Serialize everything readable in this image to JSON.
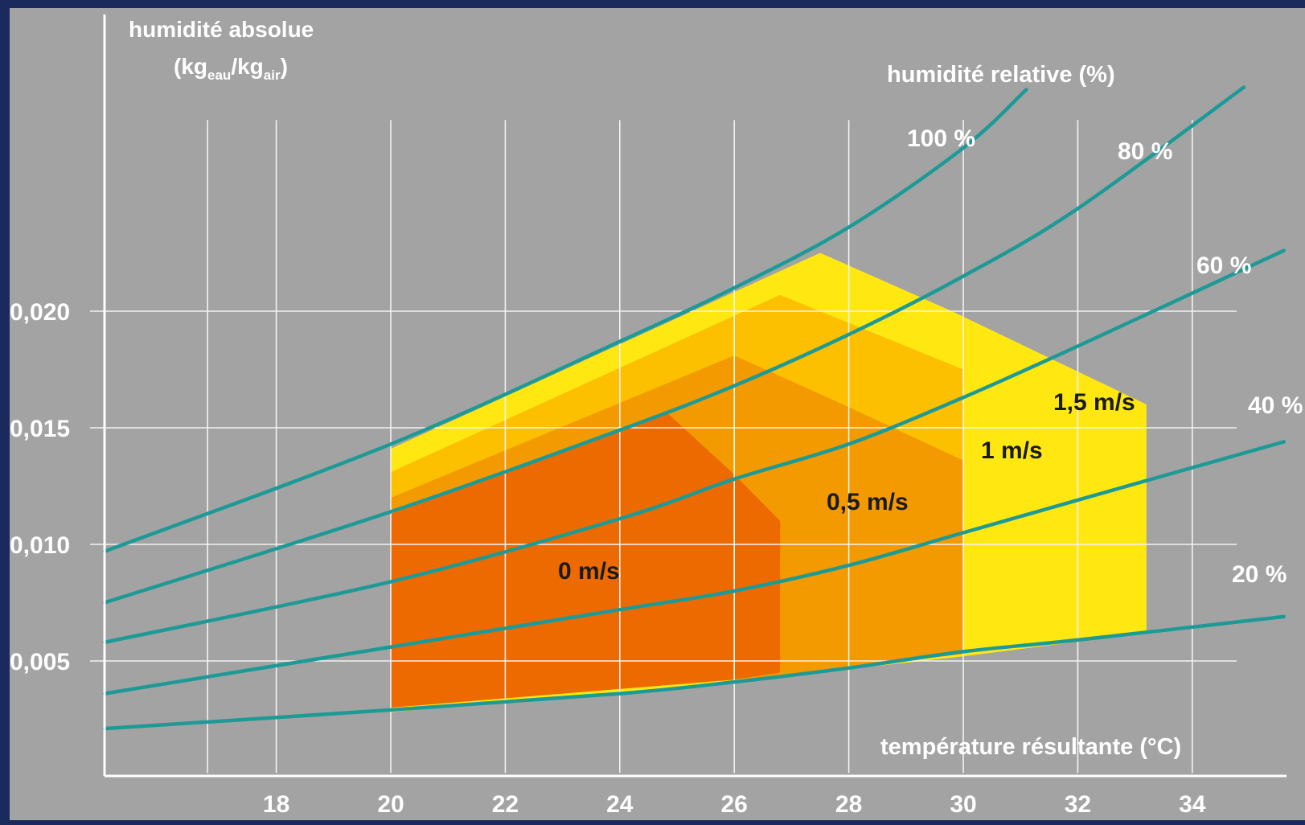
{
  "chart_data": {
    "type": "line",
    "title": "",
    "ylabel_line1": "humidité absolue",
    "ylabel_line2_kg1": "kg",
    "ylabel_line2_sub1": "eau",
    "ylabel_line2_sep": "/kg",
    "ylabel_line2_sub2": "air",
    "xlabel": "température résultante (°C)",
    "rh_title": "humidité relative (%)",
    "xlim": [
      15,
      36
    ],
    "ylim": [
      0,
      0.0305
    ],
    "x_ticks": [
      18,
      20,
      22,
      24,
      26,
      28,
      30,
      32,
      34
    ],
    "x_tick_labels": [
      "18",
      "20",
      "22",
      "24",
      "26",
      "28",
      "30",
      "32",
      "34"
    ],
    "x_grid": [
      16.8,
      18,
      20,
      22,
      24,
      26,
      28,
      30,
      32,
      34
    ],
    "y_ticks": [
      0.005,
      0.01,
      0.015,
      0.02
    ],
    "y_tick_labels": [
      "0,005",
      "0,010",
      "0,015",
      "0,020"
    ],
    "grid": true,
    "series": [
      {
        "name": "100 %",
        "x": [
          15,
          20,
          24,
          26,
          28,
          30,
          31.1
        ],
        "y": [
          0.0097,
          0.0143,
          0.0187,
          0.021,
          0.0236,
          0.027,
          0.0295
        ],
        "color": "#1e9a96"
      },
      {
        "name": "80 %",
        "x": [
          15,
          20,
          24,
          26,
          28,
          30,
          32,
          34.9
        ],
        "y": [
          0.0075,
          0.0114,
          0.0149,
          0.0168,
          0.019,
          0.0215,
          0.0244,
          0.0296
        ],
        "color": "#1e9a96"
      },
      {
        "name": "60 %",
        "x": [
          15,
          20,
          24,
          26,
          28,
          30,
          32,
          35.6
        ],
        "y": [
          0.0058,
          0.0084,
          0.0111,
          0.0128,
          0.0143,
          0.0163,
          0.0185,
          0.0226
        ],
        "color": "#1e9a96"
      },
      {
        "name": "40 %",
        "x": [
          15,
          20,
          24,
          26,
          28,
          30,
          32,
          35.6
        ],
        "y": [
          0.0036,
          0.0056,
          0.0072,
          0.008,
          0.0091,
          0.0105,
          0.0119,
          0.0144
        ],
        "color": "#1e9a96"
      },
      {
        "name": "20 %",
        "x": [
          15,
          20,
          24,
          26,
          28,
          30,
          32,
          35.6
        ],
        "y": [
          0.0021,
          0.0029,
          0.0036,
          0.0041,
          0.0047,
          0.0054,
          0.0059,
          0.0069
        ],
        "color": "#1e9a96"
      }
    ],
    "comfort_zones": [
      {
        "name": "1,5 m/s",
        "color": "#ffe812",
        "polygon": [
          [
            20,
            0.0028
          ],
          [
            20,
            0.0141
          ],
          [
            27.5,
            0.0225
          ],
          [
            29.8,
            0.02
          ],
          [
            33.2,
            0.016
          ],
          [
            33.2,
            0.0062
          ],
          [
            30,
            0.0052
          ],
          [
            26,
            0.0041
          ]
        ]
      },
      {
        "name": "1 m/s",
        "color": "#fcc000",
        "polygon": [
          [
            20,
            0.003
          ],
          [
            20,
            0.0131
          ],
          [
            26.8,
            0.0207
          ],
          [
            30,
            0.0175
          ],
          [
            30,
            0.0053
          ],
          [
            26,
            0.0042
          ]
        ]
      },
      {
        "name": "0,5 m/s",
        "color": "#f39a00",
        "polygon": [
          [
            20,
            0.003
          ],
          [
            20,
            0.012
          ],
          [
            26,
            0.0181
          ],
          [
            27.9,
            0.016
          ],
          [
            30,
            0.0136
          ],
          [
            30,
            0.0053
          ],
          [
            27,
            0.0044
          ],
          [
            26,
            0.0042
          ]
        ]
      },
      {
        "name": "0 m/s",
        "color": "#ec6a00",
        "polygon": [
          [
            20,
            0.003
          ],
          [
            20,
            0.0113
          ],
          [
            24.8,
            0.0157
          ],
          [
            26,
            0.013
          ],
          [
            26.8,
            0.011
          ],
          [
            26.8,
            0.0045
          ],
          [
            26,
            0.0042
          ]
        ]
      }
    ]
  }
}
